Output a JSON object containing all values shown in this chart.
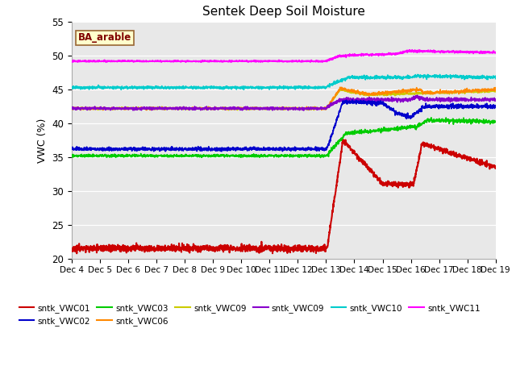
{
  "title": "Sentek Deep Soil Moisture",
  "ylabel": "VWC (%)",
  "ylim": [
    20,
    55
  ],
  "yticks": [
    20,
    25,
    30,
    35,
    40,
    45,
    50,
    55
  ],
  "xtick_labels": [
    "Dec 4",
    "Dec 5",
    "Dec 6",
    "Dec 7",
    "Dec 8",
    "Dec 9",
    "Dec 10",
    "Dec 11",
    "Dec 12",
    "Dec 13",
    "Dec 14",
    "Dec 15",
    "Dec 16",
    "Dec 17",
    "Dec 18",
    "Dec 19"
  ],
  "annotation_text": "BA_arable",
  "annotation_facecolor": "#ffffcc",
  "annotation_edgecolor": "#996633",
  "annotation_textcolor": "#800000",
  "bg_color": "#e8e8e8",
  "legend_items": [
    {
      "color": "#cc0000",
      "label": "sntk_VWC01"
    },
    {
      "color": "#0000cc",
      "label": "sntk_VWC02"
    },
    {
      "color": "#00cc00",
      "label": "sntk_VWC03"
    },
    {
      "color": "#ff8800",
      "label": "sntk_VWC06"
    },
    {
      "color": "#cccc00",
      "label": "sntk_VWC09"
    },
    {
      "color": "#8800cc",
      "label": "sntk_VWC09"
    },
    {
      "color": "#00cccc",
      "label": "sntk_VWC10"
    },
    {
      "color": "#ff00ff",
      "label": "sntk_VWC11"
    }
  ]
}
